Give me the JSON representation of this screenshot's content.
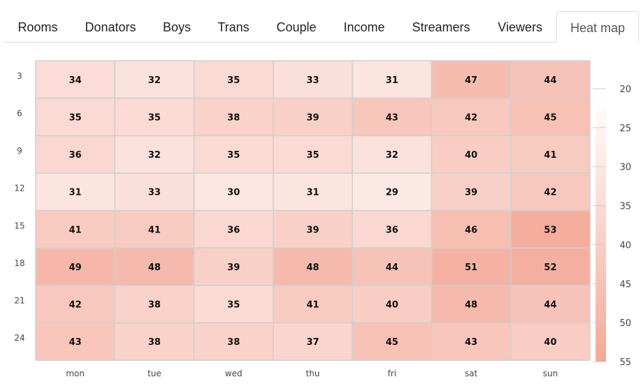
{
  "tabs": [
    {
      "label": "Rooms",
      "active": false
    },
    {
      "label": "Donators",
      "active": false
    },
    {
      "label": "Boys",
      "active": false
    },
    {
      "label": "Trans",
      "active": false
    },
    {
      "label": "Couple",
      "active": false
    },
    {
      "label": "Income",
      "active": false
    },
    {
      "label": "Streamers",
      "active": false
    },
    {
      "label": "Viewers",
      "active": false
    },
    {
      "label": "Heat map",
      "active": true
    }
  ],
  "chart_data": {
    "type": "heatmap",
    "x_categories": [
      "mon",
      "tue",
      "wed",
      "thu",
      "fri",
      "sat",
      "sun"
    ],
    "y_categories": [
      "3",
      "6",
      "9",
      "12",
      "15",
      "18",
      "21",
      "24"
    ],
    "values": [
      [
        34,
        32,
        35,
        33,
        31,
        47,
        44
      ],
      [
        35,
        35,
        38,
        39,
        43,
        42,
        45
      ],
      [
        36,
        32,
        35,
        35,
        32,
        40,
        41
      ],
      [
        31,
        33,
        30,
        31,
        29,
        39,
        42
      ],
      [
        41,
        41,
        36,
        39,
        36,
        46,
        53
      ],
      [
        49,
        48,
        39,
        48,
        44,
        51,
        52
      ],
      [
        42,
        38,
        35,
        41,
        40,
        48,
        44
      ],
      [
        43,
        38,
        38,
        37,
        45,
        43,
        40
      ]
    ],
    "color_scale": {
      "min": 20,
      "max": 55,
      "ticks": [
        "20",
        "25",
        "30",
        "35",
        "40",
        "45",
        "50",
        "55"
      ],
      "min_color": "#ffffff",
      "max_color": "#f4a898"
    },
    "legend_position": "right",
    "grid": true
  }
}
